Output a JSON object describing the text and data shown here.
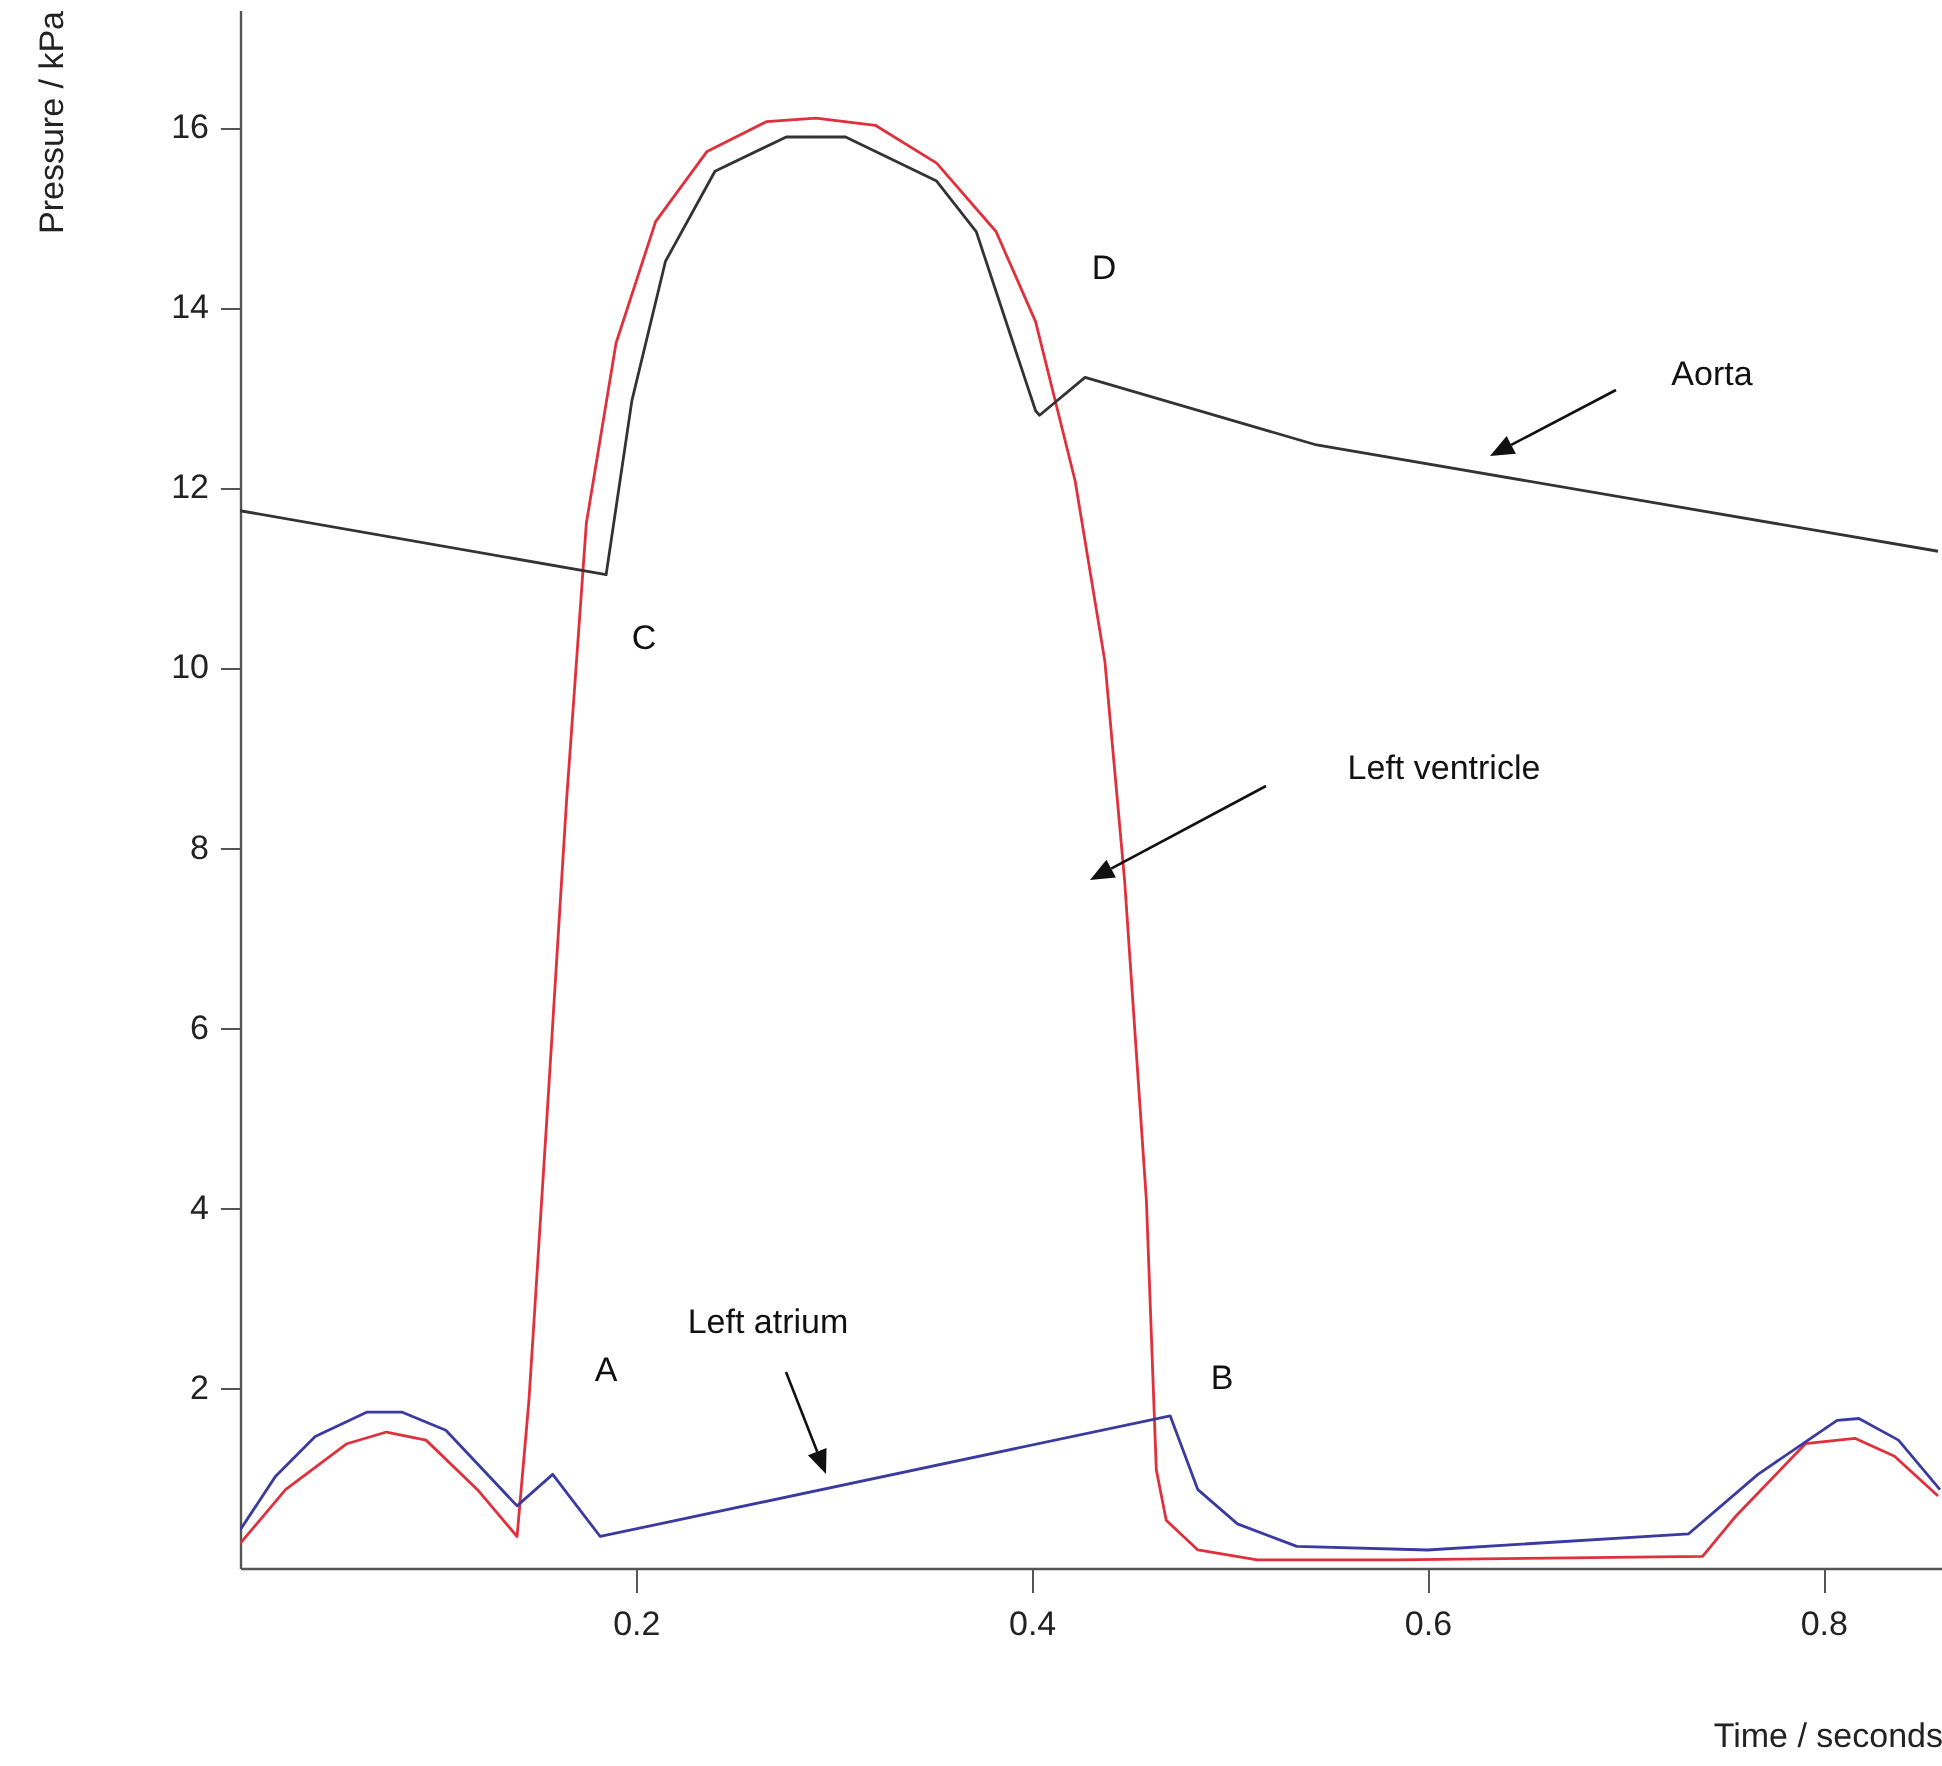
{
  "chart_data": {
    "type": "line",
    "xlabel": "Time / seconds",
    "ylabel": "Pressure / kPa",
    "xlim": [
      0,
      0.86
    ],
    "ylim": [
      0,
      17.3
    ],
    "xticks": [
      0.2,
      0.4,
      0.6,
      0.8
    ],
    "yticks": [
      2,
      4,
      6,
      8,
      10,
      12,
      14,
      16
    ],
    "grid": false,
    "marker": "none",
    "line_style": "solid",
    "series": [
      {
        "color": "#e0303c",
        "x": [
          0.0,
          0.023,
          0.054,
          0.074,
          0.094,
          0.12,
          0.14,
          0.146,
          0.155,
          0.165,
          0.175,
          0.19,
          0.21,
          0.236,
          0.266,
          0.291,
          0.321,
          0.352,
          0.382,
          0.402,
          0.422,
          0.437,
          0.447,
          0.458,
          0.463,
          0.468,
          0.484,
          0.514,
          0.584,
          0.739,
          0.756,
          0.791,
          0.816,
          0.836,
          0.858
        ],
        "values": [
          0.27,
          0.87,
          1.38,
          1.51,
          1.42,
          0.87,
          0.35,
          1.86,
          4.97,
          8.52,
          11.6,
          13.6,
          14.95,
          15.73,
          16.06,
          16.1,
          16.02,
          15.6,
          14.84,
          13.84,
          12.07,
          10.07,
          7.63,
          4.08,
          1.09,
          0.53,
          0.2,
          0.09,
          0.09,
          0.13,
          0.58,
          1.38,
          1.44,
          1.24,
          0.8
        ]
      },
      {
        "color": "#333333",
        "x": [
          0.0,
          0.185,
          0.198,
          0.215,
          0.24,
          0.276,
          0.306,
          0.352,
          0.372,
          0.402,
          0.404,
          0.427,
          0.544,
          0.858
        ],
        "values": [
          11.74,
          11.03,
          12.96,
          14.51,
          15.51,
          15.89,
          15.89,
          15.4,
          14.84,
          12.85,
          12.8,
          13.22,
          12.47,
          11.29
        ]
      },
      {
        "color": "#3a3aa0",
        "x": [
          0.0,
          0.018,
          0.038,
          0.064,
          0.082,
          0.104,
          0.14,
          0.158,
          0.182,
          0.47,
          0.484,
          0.504,
          0.534,
          0.6,
          0.732,
          0.767,
          0.807,
          0.818,
          0.838,
          0.859
        ],
        "values": [
          0.42,
          1.02,
          1.46,
          1.73,
          1.73,
          1.53,
          0.69,
          1.04,
          0.35,
          1.69,
          0.87,
          0.49,
          0.24,
          0.2,
          0.38,
          1.04,
          1.64,
          1.66,
          1.42,
          0.87
        ]
      }
    ],
    "annotations": [
      "Left ventricle",
      "Aorta",
      "Left atrium",
      "A",
      "B",
      "C",
      "D"
    ]
  }
}
